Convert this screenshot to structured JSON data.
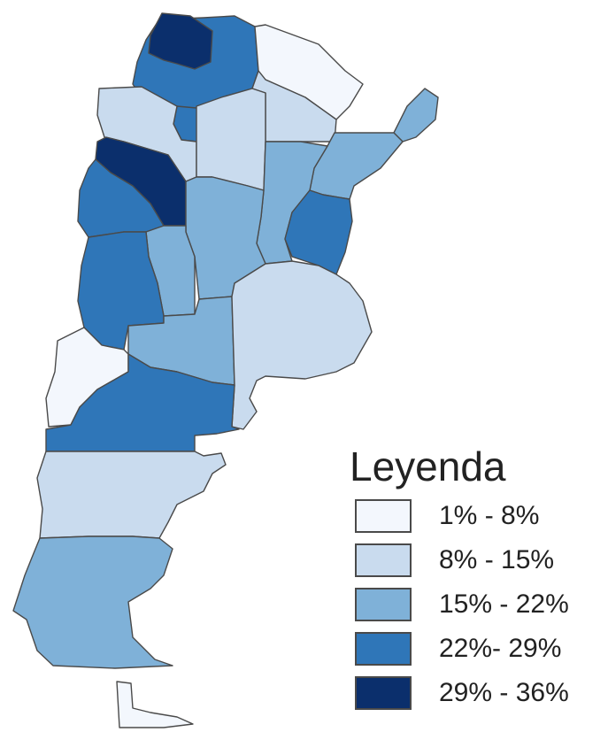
{
  "legend": {
    "title": "Leyenda",
    "items": [
      {
        "label": "1% - 8%",
        "color": "#f3f7fd"
      },
      {
        "label": "8% - 15%",
        "color": "#c9dbee"
      },
      {
        "label": "15% - 22%",
        "color": "#7fb1d8"
      },
      {
        "label": "22%- 29%",
        "color": "#2f76b8"
      },
      {
        "label": "29% - 36%",
        "color": "#0b2f6c"
      }
    ]
  }
}
